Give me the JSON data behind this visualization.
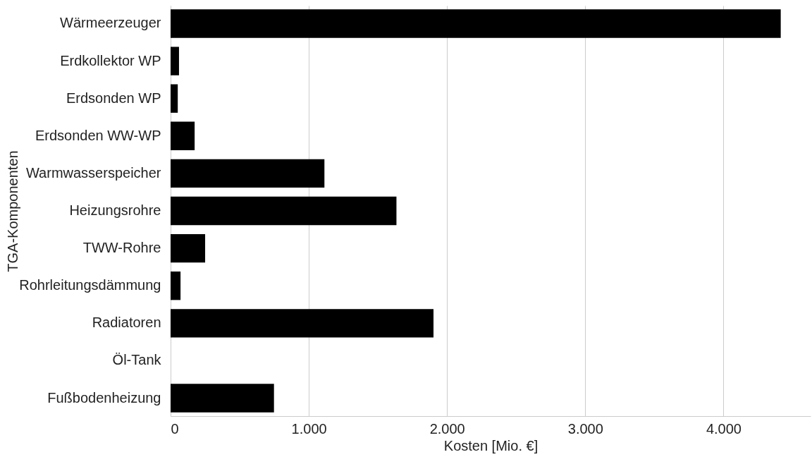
{
  "chart_data": {
    "type": "bar",
    "orientation": "horizontal",
    "categories": [
      "Wärmeerzeuger",
      "Erdkollektor WP",
      "Erdsonden WP",
      "Erdsonden WW-WP",
      "Warmwasserspeicher",
      "Heizungsrohre",
      "TWW-Rohre",
      "Rohrleitungsdämmung",
      "Radiatoren",
      "Öl-Tank",
      "Fußbodenheizung"
    ],
    "values": [
      4414,
      61,
      52,
      174,
      1113,
      1634,
      250,
      72,
      1902,
      0,
      748
    ],
    "color": "#000000",
    "xlabel": "Kosten [Mio. €]",
    "ylabel": "TGA-Komponenten",
    "xlim": [
      0,
      4630
    ],
    "xticks": [
      0,
      {
        "value": 1000,
        "label": "1.000"
      },
      {
        "value": 2000,
        "label": "2.000"
      },
      {
        "value": 3000,
        "label": "3.000"
      },
      {
        "value": 4000,
        "label": "4.000"
      }
    ],
    "grid": "x"
  }
}
